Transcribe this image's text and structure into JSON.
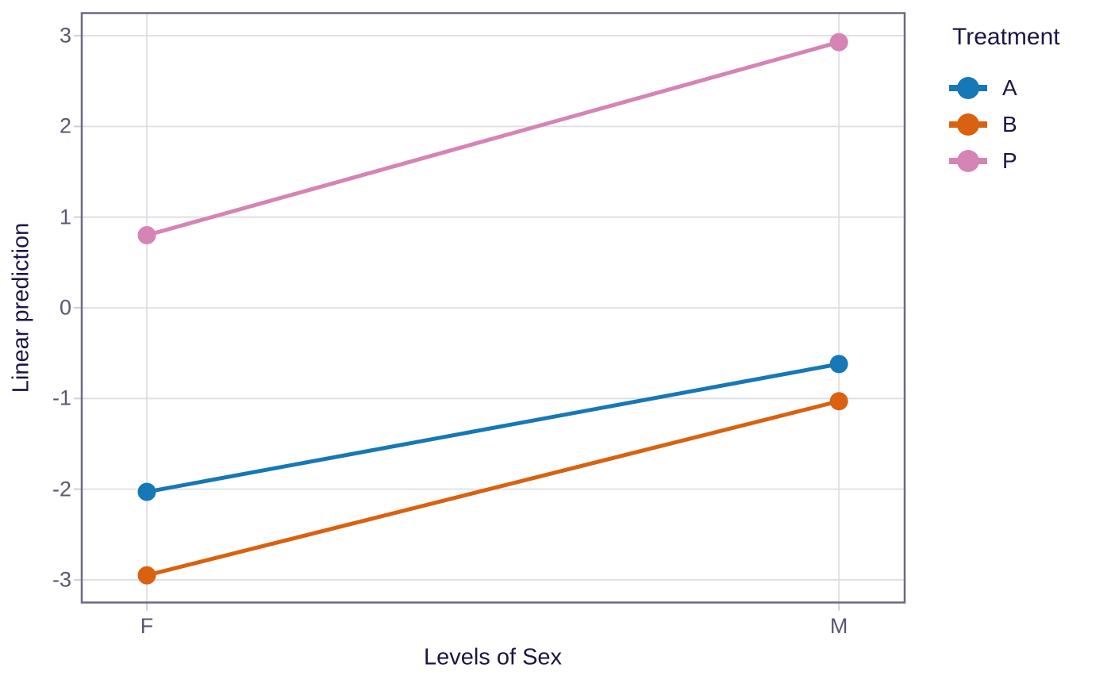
{
  "chart_data": {
    "type": "line",
    "title": "",
    "xlabel": "Levels of Sex",
    "ylabel": "Linear prediction",
    "categories": [
      "F",
      "M"
    ],
    "y_ticks": [
      3,
      2,
      1,
      0,
      -1,
      -2,
      -3
    ],
    "ylim": [
      -3.25,
      3.25
    ],
    "grid": true,
    "legend": {
      "title": "Treatment",
      "position": "top-right-outside",
      "entries": [
        "A",
        "B",
        "P"
      ]
    },
    "series": [
      {
        "name": "A",
        "color": "#1678b4",
        "values": [
          -2.03,
          -0.62
        ]
      },
      {
        "name": "B",
        "color": "#d9610f",
        "values": [
          -2.95,
          -1.03
        ]
      },
      {
        "name": "P",
        "color": "#d683b5",
        "values": [
          0.8,
          2.93
        ]
      }
    ]
  },
  "colors": {
    "background": "#ffffff",
    "gridline": "#dedde4",
    "plot_border": "#6e6880",
    "tick_mark": "#cfced6",
    "tick_label": "#5b5671",
    "axis_title": "#1e1546"
  }
}
